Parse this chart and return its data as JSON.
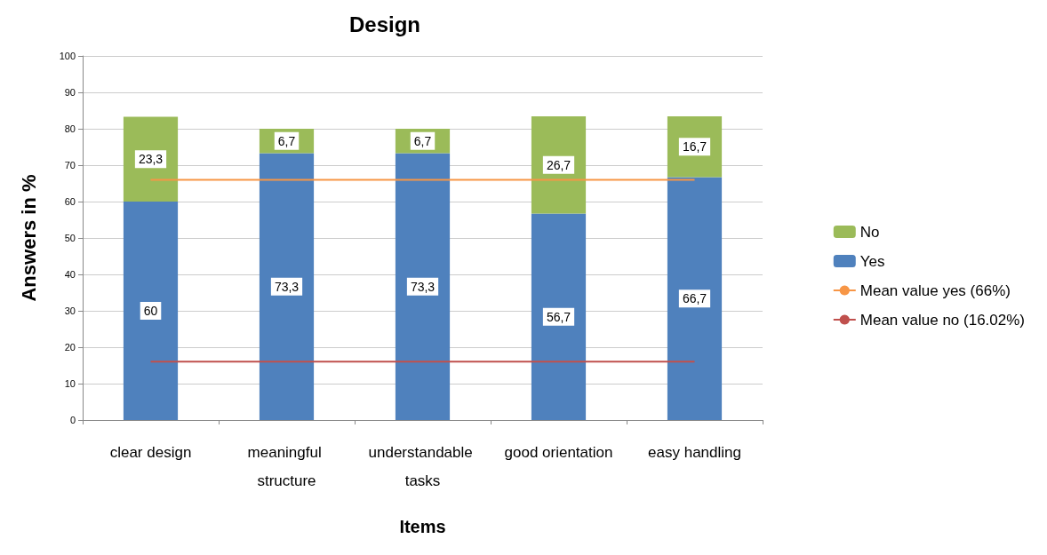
{
  "chart_data": {
    "type": "bar",
    "title": "Design",
    "xlabel": "Items",
    "ylabel": "Answers in %",
    "categories": [
      "clear design",
      "meaningful structure",
      "understandable tasks",
      "good orientation",
      "easy handling"
    ],
    "stacked": true,
    "series": [
      {
        "name": "Yes",
        "color": "#4f81bd",
        "values": [
          60,
          73.3,
          73.3,
          56.7,
          66.7
        ],
        "value_labels": [
          "60",
          "73,3",
          "73,3",
          "56,7",
          "66,7"
        ]
      },
      {
        "name": "No",
        "color": "#9bbb59",
        "values": [
          23.3,
          6.7,
          6.7,
          26.7,
          16.7
        ],
        "value_labels": [
          "23,3",
          "6,7",
          "6,7",
          "26,7",
          "16,7"
        ]
      },
      {
        "name": "Mean value yes (66%)",
        "type": "line",
        "color": "#f79646",
        "values": [
          66,
          66,
          66,
          66,
          66
        ]
      },
      {
        "name": "Mean value no (16.02%)",
        "type": "line",
        "color": "#c0504d",
        "values": [
          16.02,
          16.02,
          16.02,
          16.02,
          16.02
        ]
      }
    ],
    "ylim": [
      0,
      100
    ],
    "yticks": [
      0,
      10,
      20,
      30,
      40,
      50,
      60,
      70,
      80,
      90,
      100
    ],
    "grid": "y",
    "legend": "right",
    "marker": "none"
  }
}
